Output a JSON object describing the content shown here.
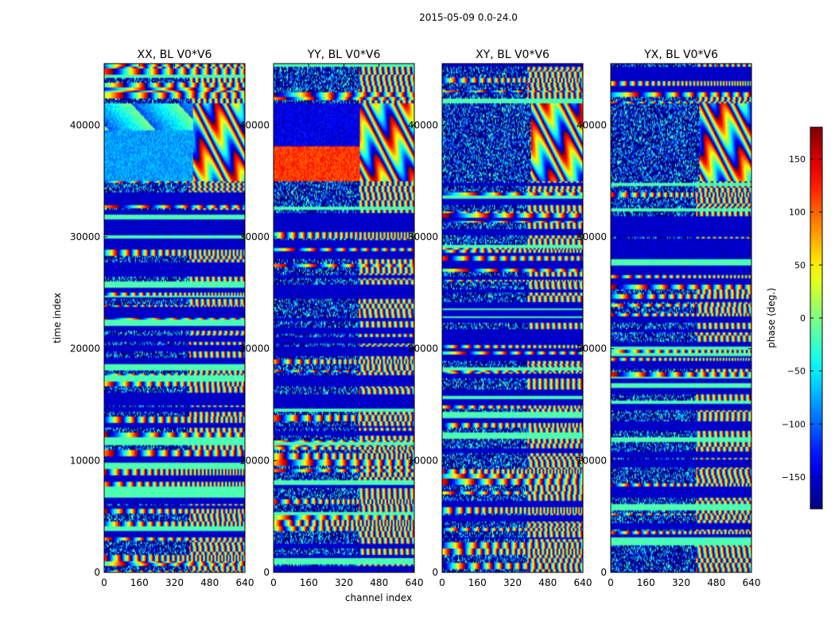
{
  "chart_data": {
    "type": "heatmap",
    "suptitle": "2015-05-09 0.0-24.0",
    "xlabel": "channel index",
    "ylabel": "time index",
    "xlim": [
      0,
      640
    ],
    "ylim": [
      0,
      45500
    ],
    "x_ticks": [
      0,
      160,
      320,
      480,
      640
    ],
    "y_ticks": [
      0,
      10000,
      20000,
      30000,
      40000
    ],
    "panels": [
      {
        "title": "XX, BL V0*V6",
        "pol": "XX"
      },
      {
        "title": "YY, BL V0*V6",
        "pol": "YY"
      },
      {
        "title": "XY, BL V0*V6",
        "pol": "XY"
      },
      {
        "title": "YX, BL V0*V6",
        "pol": "YX"
      }
    ],
    "colorbar": {
      "label": "phase (deg.)",
      "range": [
        -180,
        180
      ],
      "colormap": "jet",
      "ticks": [
        -150,
        -100,
        -50,
        0,
        50,
        100,
        150
      ],
      "tick_labels": [
        "−150",
        "−100",
        "−50",
        "0",
        "50",
        "100",
        "150"
      ]
    }
  }
}
